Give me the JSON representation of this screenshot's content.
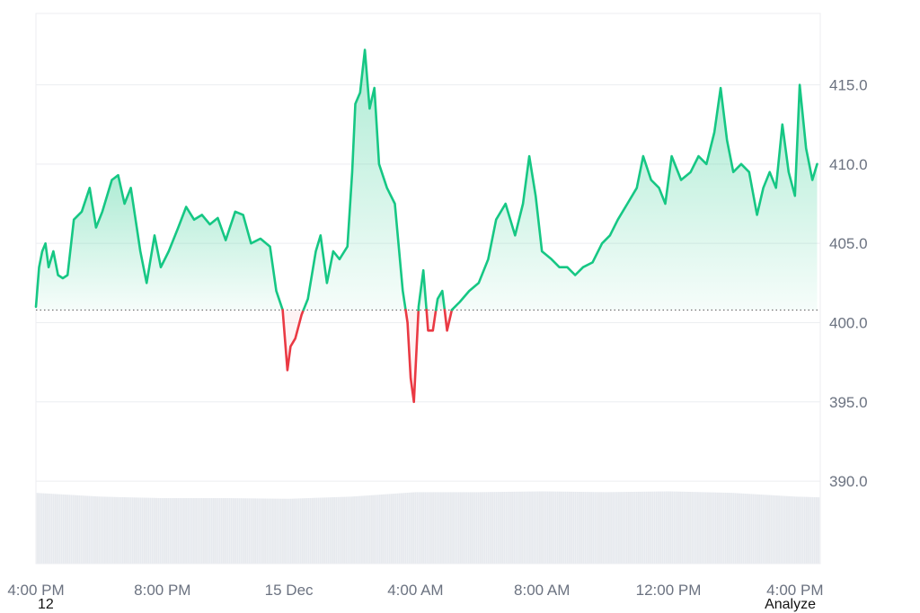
{
  "footer": {
    "left": "12",
    "right": "Analyze"
  },
  "colors": {
    "up": "#16c784",
    "down": "#ea3943",
    "fill_up": "#16c784",
    "volume": "#e6e9ee",
    "grid": "#eceef1",
    "baseline": "#555555"
  },
  "chart_data": {
    "type": "area",
    "baseline": 400.8,
    "ylim": [
      384.8,
      419.5
    ],
    "y_ticks": [
      "415.0",
      "410.0",
      "405.0",
      "400.0",
      "395.0",
      "390.0"
    ],
    "y_tick_values": [
      415,
      410,
      405,
      400,
      395,
      390
    ],
    "x_ticks": [
      "4:00 PM",
      "8:00 PM",
      "15 Dec",
      "4:00 AM",
      "8:00 AM",
      "12:00 PM",
      "4:00 PM"
    ],
    "x_tick_hours": [
      0,
      4,
      8,
      12,
      16,
      20,
      24
    ],
    "x_range_hours": [
      0,
      24.8
    ],
    "series": [
      {
        "values": [
          [
            0.0,
            401.0
          ],
          [
            0.1,
            403.5
          ],
          [
            0.2,
            404.5
          ],
          [
            0.3,
            405.0
          ],
          [
            0.4,
            403.5
          ],
          [
            0.55,
            404.5
          ],
          [
            0.7,
            403.0
          ],
          [
            0.85,
            402.8
          ],
          [
            1.0,
            403.0
          ],
          [
            1.2,
            406.5
          ],
          [
            1.45,
            407.0
          ],
          [
            1.7,
            408.5
          ],
          [
            1.9,
            406.0
          ],
          [
            2.1,
            407.0
          ],
          [
            2.4,
            409.0
          ],
          [
            2.6,
            409.3
          ],
          [
            2.8,
            407.5
          ],
          [
            3.0,
            408.5
          ],
          [
            3.3,
            404.5
          ],
          [
            3.5,
            402.5
          ],
          [
            3.75,
            405.5
          ],
          [
            3.95,
            403.5
          ],
          [
            4.2,
            404.5
          ],
          [
            4.5,
            406.0
          ],
          [
            4.75,
            407.3
          ],
          [
            5.0,
            406.5
          ],
          [
            5.25,
            406.8
          ],
          [
            5.5,
            406.2
          ],
          [
            5.75,
            406.6
          ],
          [
            6.0,
            405.2
          ],
          [
            6.3,
            407.0
          ],
          [
            6.55,
            406.8
          ],
          [
            6.8,
            405.0
          ],
          [
            7.1,
            405.3
          ],
          [
            7.4,
            404.8
          ],
          [
            7.6,
            402.0
          ],
          [
            7.8,
            400.8
          ],
          [
            7.95,
            397.0
          ],
          [
            8.05,
            398.5
          ],
          [
            8.2,
            399.0
          ],
          [
            8.4,
            400.5
          ],
          [
            8.6,
            401.5
          ],
          [
            8.85,
            404.5
          ],
          [
            9.0,
            405.5
          ],
          [
            9.2,
            402.5
          ],
          [
            9.4,
            404.5
          ],
          [
            9.6,
            404.0
          ],
          [
            9.85,
            404.8
          ],
          [
            10.0,
            409.5
          ],
          [
            10.1,
            413.8
          ],
          [
            10.25,
            414.5
          ],
          [
            10.4,
            417.2
          ],
          [
            10.55,
            413.5
          ],
          [
            10.7,
            414.8
          ],
          [
            10.85,
            410.0
          ],
          [
            11.1,
            408.5
          ],
          [
            11.35,
            407.5
          ],
          [
            11.6,
            402.0
          ],
          [
            11.75,
            400.0
          ],
          [
            11.85,
            396.5
          ],
          [
            11.95,
            395.0
          ],
          [
            12.1,
            401.0
          ],
          [
            12.25,
            403.3
          ],
          [
            12.4,
            399.5
          ],
          [
            12.55,
            399.5
          ],
          [
            12.7,
            401.5
          ],
          [
            12.85,
            402.0
          ],
          [
            13.0,
            399.5
          ],
          [
            13.15,
            400.8
          ],
          [
            13.4,
            401.3
          ],
          [
            13.7,
            402.0
          ],
          [
            14.0,
            402.5
          ],
          [
            14.3,
            404.0
          ],
          [
            14.55,
            406.5
          ],
          [
            14.85,
            407.5
          ],
          [
            15.15,
            405.5
          ],
          [
            15.4,
            407.5
          ],
          [
            15.6,
            410.5
          ],
          [
            15.8,
            408.0
          ],
          [
            16.0,
            404.5
          ],
          [
            16.3,
            404.0
          ],
          [
            16.55,
            403.5
          ],
          [
            16.8,
            403.5
          ],
          [
            17.05,
            403.0
          ],
          [
            17.3,
            403.5
          ],
          [
            17.6,
            403.8
          ],
          [
            17.9,
            405.0
          ],
          [
            18.15,
            405.5
          ],
          [
            18.4,
            406.5
          ],
          [
            18.7,
            407.5
          ],
          [
            19.0,
            408.5
          ],
          [
            19.2,
            410.5
          ],
          [
            19.45,
            409.0
          ],
          [
            19.7,
            408.5
          ],
          [
            19.9,
            407.5
          ],
          [
            20.1,
            410.5
          ],
          [
            20.4,
            409.0
          ],
          [
            20.7,
            409.5
          ],
          [
            20.95,
            410.5
          ],
          [
            21.2,
            410.0
          ],
          [
            21.45,
            412.0
          ],
          [
            21.65,
            414.8
          ],
          [
            21.85,
            411.5
          ],
          [
            22.05,
            409.5
          ],
          [
            22.3,
            410.0
          ],
          [
            22.55,
            409.5
          ],
          [
            22.8,
            406.8
          ],
          [
            23.0,
            408.5
          ],
          [
            23.2,
            409.5
          ],
          [
            23.4,
            408.5
          ],
          [
            23.6,
            412.5
          ],
          [
            23.8,
            409.5
          ],
          [
            24.0,
            408.0
          ],
          [
            24.15,
            415.0
          ],
          [
            24.35,
            411.0
          ],
          [
            24.55,
            409.0
          ],
          [
            24.7,
            410.0
          ]
        ]
      }
    ],
    "volume": [
      [
        0.0,
        0.95
      ],
      [
        2.0,
        0.9
      ],
      [
        4.0,
        0.88
      ],
      [
        6.0,
        0.88
      ],
      [
        8.0,
        0.87
      ],
      [
        10.0,
        0.9
      ],
      [
        12.0,
        0.96
      ],
      [
        14.0,
        0.96
      ],
      [
        16.0,
        0.97
      ],
      [
        18.0,
        0.96
      ],
      [
        20.0,
        0.97
      ],
      [
        22.0,
        0.95
      ],
      [
        24.0,
        0.9
      ],
      [
        24.8,
        0.89
      ]
    ],
    "grid": true
  }
}
